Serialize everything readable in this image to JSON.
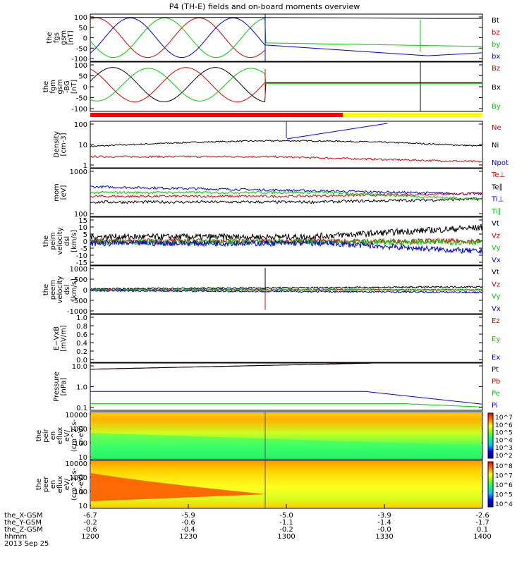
{
  "title": "P4 (TH-E) fields and on-board moments overview",
  "colors": {
    "black": "#000000",
    "red": "#dd0000",
    "green": "#00cc00",
    "blue": "#0000dd",
    "yellow": "#ffff00",
    "bar_red": "#ff0000"
  },
  "chart_data": [
    {
      "id": "fgs",
      "type": "line",
      "ylabel": [
        "the",
        "fgs",
        "gsm",
        "[nT]"
      ],
      "yticks": [
        "100",
        "50",
        "0",
        "-50",
        "-100"
      ],
      "yrange": [
        -100,
        100
      ],
      "legend": [
        {
          "name": "Bt",
          "color": "black"
        },
        {
          "name": "bz",
          "color": "red"
        },
        {
          "name": "by",
          "color": "green"
        },
        {
          "name": "bx",
          "color": "blue"
        }
      ]
    },
    {
      "id": "fgm",
      "type": "line",
      "ylabel": [
        "the",
        "fgm",
        "gsm",
        "-BG",
        "[nT]"
      ],
      "yticks": [
        "100",
        "50",
        "0",
        "-50",
        "-100"
      ],
      "yrange": [
        -130,
        130
      ],
      "legend": [
        {
          "name": "Bz",
          "color": "red"
        },
        {
          "name": "Bx",
          "color": "black"
        },
        {
          "name": "By",
          "color": "green"
        }
      ]
    },
    {
      "id": "density",
      "type": "line",
      "ylabel": [
        "Density",
        "[cm-3]"
      ],
      "yticks": [
        "100",
        "10",
        "1"
      ],
      "log": true,
      "legend": [
        {
          "name": "Ne",
          "color": "red"
        },
        {
          "name": "Ni",
          "color": "black"
        },
        {
          "name": "Npot",
          "color": "blue"
        }
      ]
    },
    {
      "id": "temp",
      "type": "line",
      "ylabel": [
        "mom",
        "[eV]"
      ],
      "yticks": [
        "1000",
        "100"
      ],
      "log": true,
      "legend": [
        {
          "name": "Te⊥",
          "color": "red"
        },
        {
          "name": "Te∥",
          "color": "black"
        },
        {
          "name": "Ti⊥",
          "color": "blue"
        },
        {
          "name": "Ti∥",
          "color": "green"
        }
      ]
    },
    {
      "id": "peim",
      "type": "line",
      "ylabel": [
        "the",
        "peim",
        "velocity",
        "dsl",
        "[km/s]"
      ],
      "yticks": [
        "15",
        "10",
        "5",
        "0",
        "-5",
        "-10",
        "-15"
      ],
      "yrange": [
        -15,
        15
      ],
      "legend": [
        {
          "name": "Vt",
          "color": "black"
        },
        {
          "name": "Vz",
          "color": "red"
        },
        {
          "name": "Vy",
          "color": "green"
        },
        {
          "name": "Vx",
          "color": "blue"
        }
      ]
    },
    {
      "id": "peem",
      "type": "line",
      "ylabel": [
        "the",
        "peem",
        "velocity",
        "dsl",
        "[km/s]"
      ],
      "yticks": [
        "1000",
        "500",
        "0",
        "-500",
        "-1000"
      ],
      "yrange": [
        -1000,
        1000
      ],
      "legend": [
        {
          "name": "Vt",
          "color": "black"
        },
        {
          "name": "Vz",
          "color": "red"
        },
        {
          "name": "Vy",
          "color": "green"
        },
        {
          "name": "Vx",
          "color": "blue"
        }
      ]
    },
    {
      "id": "efield",
      "type": "line",
      "ylabel": [
        "E−VxB",
        "[mV/m]"
      ],
      "yticks": [
        "1.0",
        "0.8",
        "0.6",
        "0.4",
        "0.2",
        "0.0"
      ],
      "yrange": [
        0,
        1
      ],
      "legend": [
        {
          "name": "Ez",
          "color": "red"
        },
        {
          "name": "Ey",
          "color": "green"
        },
        {
          "name": "Ex",
          "color": "blue"
        }
      ]
    },
    {
      "id": "pressure",
      "type": "line",
      "ylabel": [
        "Pressure",
        "[nPa]"
      ],
      "yticks": [
        "10.0",
        "1.0",
        "0.1"
      ],
      "log": true,
      "legend": [
        {
          "name": "Pt",
          "color": "black"
        },
        {
          "name": "Pb",
          "color": "red"
        },
        {
          "name": "Pe",
          "color": "green"
        },
        {
          "name": "Pi",
          "color": "blue"
        }
      ]
    },
    {
      "id": "peir",
      "type": "heatmap",
      "ylabel": [
        "the",
        "peir",
        "en",
        "eflux",
        "eV/",
        "(cm^2-s-",
        "sr-eV)"
      ],
      "yticks": [
        "10000",
        "1000",
        "100",
        "10"
      ],
      "colorbar": [
        "10^7",
        "10^6",
        "10^5",
        "10^4",
        "10^3",
        "10^2"
      ]
    },
    {
      "id": "peer",
      "type": "heatmap",
      "ylabel": [
        "the",
        "peer",
        "en",
        "eflux",
        "eV/",
        "(cm^2-s-",
        "sr-eV)"
      ],
      "yticks": [
        "10000",
        "1000",
        "100",
        "10"
      ],
      "colorbar": [
        "10^8",
        "10^7",
        "10^6",
        "10^5",
        "10^4"
      ]
    }
  ],
  "xaxis": {
    "rows": [
      {
        "label": "the_X-GSM",
        "values": [
          "-6.7",
          "-5.9",
          "-5.0",
          "-3.9",
          "-2.6"
        ]
      },
      {
        "label": "the_Y-GSM",
        "values": [
          "-0.2",
          "-0.6",
          "-1.1",
          "-1.4",
          "-1.7"
        ]
      },
      {
        "label": "the_Z-GSM",
        "values": [
          "-0.6",
          "-0.4",
          "-0.2",
          "-0.0",
          "0.1"
        ]
      },
      {
        "label": "hhmm",
        "values": [
          "1200",
          "1230",
          "1300",
          "1330",
          "1400"
        ]
      }
    ],
    "date": "2013 Sep 25"
  }
}
